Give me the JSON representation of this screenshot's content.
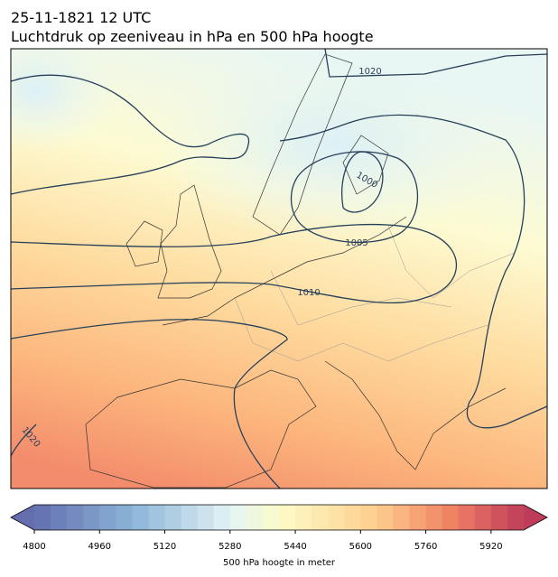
{
  "header": {
    "line1": "25-11-1821 12 UTC",
    "line2": "Luchtdruk op zeeniveau in hPa en 500 hPa hoogte"
  },
  "map": {
    "contour_labels": [
      "1020",
      "1000",
      "1005",
      "1010",
      "1020"
    ]
  },
  "colorbar": {
    "lim": [
      4800,
      6000
    ],
    "ticks": [
      4800,
      4960,
      5120,
      5280,
      5440,
      5600,
      5760,
      5920
    ],
    "label": "500 hPa hoogte in meter"
  }
}
